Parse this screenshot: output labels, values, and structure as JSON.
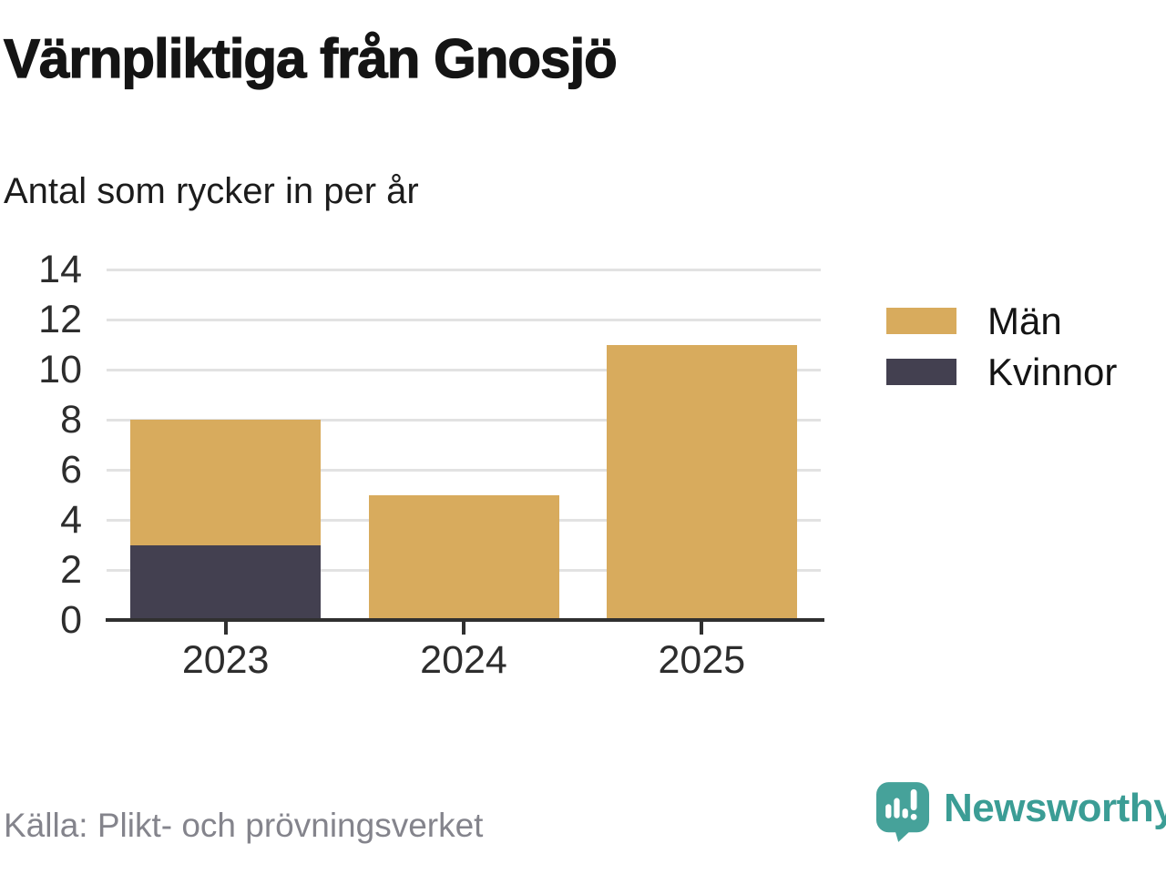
{
  "title": "Värnpliktiga från Gnosjö",
  "subtitle": "Antal som rycker in per år",
  "source": "Källa: Plikt- och prövningsverket",
  "brand": {
    "name": "Newsworthy",
    "text_color": "#3b9d95",
    "icon_color": "#46a29a"
  },
  "chart_data": {
    "type": "bar",
    "stacked": true,
    "title": "Värnpliktiga från Gnosjö",
    "subtitle": "Antal som rycker in per år",
    "categories": [
      "2023",
      "2024",
      "2025"
    ],
    "series": [
      {
        "name": "Män",
        "color": "#d8ab5d",
        "values": [
          5,
          5,
          11
        ]
      },
      {
        "name": "Kvinnor",
        "color": "#434050",
        "values": [
          3,
          0,
          0
        ]
      }
    ],
    "stack_order_bottom_to_top": [
      "Kvinnor",
      "Män"
    ],
    "stack_totals": [
      8,
      5,
      11
    ],
    "ylim": [
      0,
      14
    ],
    "yticks": [
      0,
      2,
      4,
      6,
      8,
      10,
      12,
      14
    ],
    "xlabel": "",
    "ylabel": "",
    "grid": "horizontal",
    "legend_position": "right",
    "colors": {
      "grid": "#e2e2e2",
      "axis": "#303030",
      "tick_labels": "#2d2d2d"
    }
  }
}
